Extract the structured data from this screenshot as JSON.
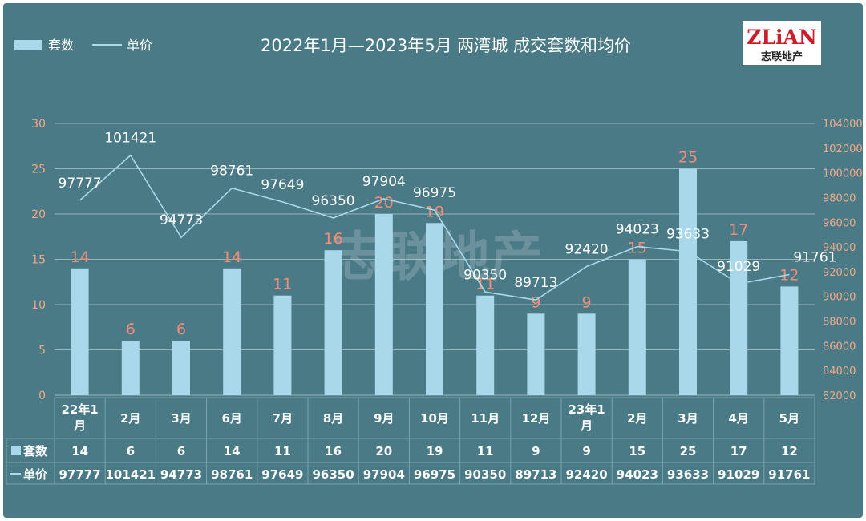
{
  "chart_data": {
    "type": "bar",
    "title": "2022年1月—2023年5月  两湾城  成交套数和均价",
    "categories": [
      "22年1月",
      "2月",
      "3月",
      "6月",
      "7月",
      "8月",
      "9月",
      "10月",
      "11月",
      "12月",
      "23年1月",
      "2月",
      "3月",
      "4月",
      "5月"
    ],
    "series": [
      {
        "name": "套数",
        "kind": "bar",
        "axis": "left",
        "color": "#a8d8ea",
        "values": [
          14,
          6,
          6,
          14,
          11,
          16,
          20,
          19,
          11,
          9,
          9,
          15,
          25,
          17,
          12
        ]
      },
      {
        "name": "单价",
        "kind": "line",
        "axis": "right",
        "color": "#a8d8ea",
        "values": [
          97777,
          101421,
          94773,
          98761,
          97649,
          96350,
          97904,
          96975,
          90350,
          89713,
          92420,
          94023,
          93633,
          91029,
          91761
        ]
      }
    ],
    "y_left": {
      "min": 0,
      "max": 30,
      "step": 5,
      "ticks": [
        "0",
        "5",
        "10",
        "15",
        "20",
        "25",
        "30"
      ]
    },
    "y_right": {
      "min": 82000,
      "max": 104000,
      "step": 2000,
      "ticks": [
        "82000",
        "84000",
        "86000",
        "88000",
        "90000",
        "92000",
        "94000",
        "96000",
        "98000",
        "100000",
        "102000",
        "104000"
      ]
    },
    "grid": true,
    "legend": {
      "position": "top-left",
      "items": [
        "套数",
        "单价"
      ]
    },
    "data_table": true
  },
  "watermark": "志联地产",
  "logo": {
    "main": "ZLiAN",
    "sub": "志联地产"
  },
  "colors": {
    "panel": "#4a7a86",
    "bar": "#a8d8ea",
    "bar_label": "#f28d7a",
    "axis_tick": "#f0a98a",
    "logo_red": "#c8202a"
  }
}
